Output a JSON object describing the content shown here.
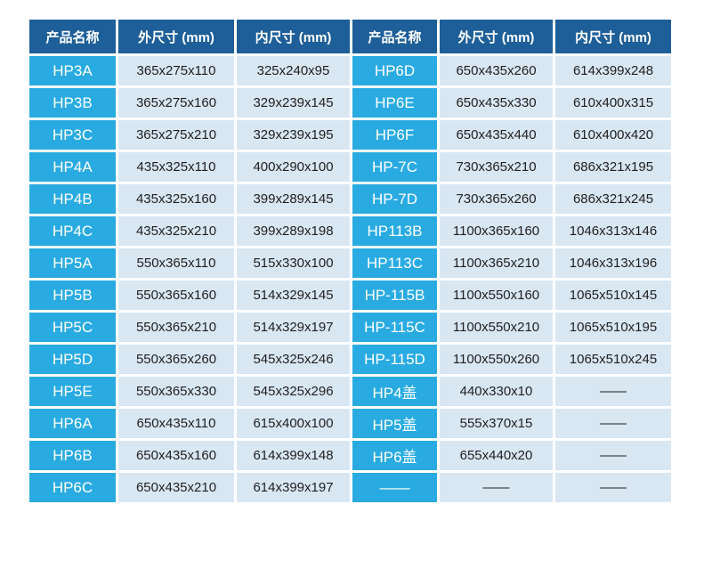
{
  "colors": {
    "header_bg": "#1e5f99",
    "header_text": "#ffffff",
    "name_bg": "#29abe2",
    "name_text": "#ffffff",
    "cell_bg": "#d9e7f3",
    "cell_text": "#1f1f1f",
    "page_bg": "#ffffff"
  },
  "table": {
    "headers": [
      "产品名称",
      "外尺寸 (mm)",
      "内尺寸 (mm)",
      "产品名称",
      "外尺寸 (mm)",
      "内尺寸 (mm)"
    ],
    "rows": [
      [
        "HP3A",
        "365x275x110",
        "325x240x95",
        "HP6D",
        "650x435x260",
        "614x399x248"
      ],
      [
        "HP3B",
        "365x275x160",
        "329x239x145",
        "HP6E",
        "650x435x330",
        "610x400x315"
      ],
      [
        "HP3C",
        "365x275x210",
        "329x239x195",
        "HP6F",
        "650x435x440",
        "610x400x420"
      ],
      [
        "HP4A",
        "435x325x110",
        "400x290x100",
        "HP-7C",
        "730x365x210",
        "686x321x195"
      ],
      [
        "HP4B",
        "435x325x160",
        "399x289x145",
        "HP-7D",
        "730x365x260",
        "686x321x245"
      ],
      [
        "HP4C",
        "435x325x210",
        "399x289x198",
        "HP113B",
        "1100x365x160",
        "1046x313x146"
      ],
      [
        "HP5A",
        "550x365x110",
        "515x330x100",
        "HP113C",
        "1100x365x210",
        "1046x313x196"
      ],
      [
        "HP5B",
        "550x365x160",
        "514x329x145",
        "HP-115B",
        "1100x550x160",
        "1065x510x145"
      ],
      [
        "HP5C",
        "550x365x210",
        "514x329x197",
        "HP-115C",
        "1100x550x210",
        "1065x510x195"
      ],
      [
        "HP5D",
        "550x365x260",
        "545x325x246",
        "HP-115D",
        "1100x550x260",
        "1065x510x245"
      ],
      [
        "HP5E",
        "550x365x330",
        "545x325x296",
        "HP4盖",
        "440x330x10",
        "——"
      ],
      [
        "HP6A",
        "650x435x110",
        "615x400x100",
        "HP5盖",
        "555x370x15",
        "——"
      ],
      [
        "HP6B",
        "650x435x160",
        "614x399x148",
        "HP6盖",
        "655x440x20",
        "——"
      ],
      [
        "HP6C",
        "650x435x210",
        "614x399x197",
        "——",
        "——",
        "——"
      ]
    ]
  }
}
